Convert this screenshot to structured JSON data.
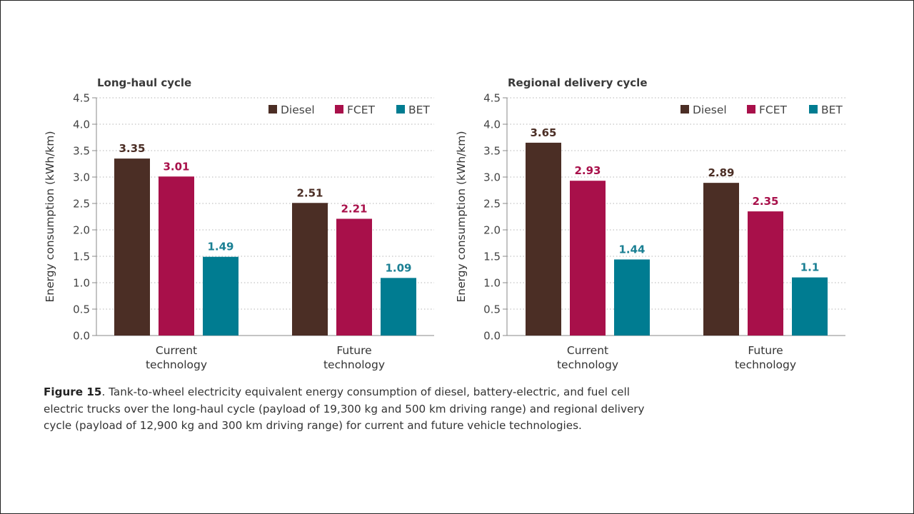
{
  "chart_data": [
    {
      "type": "bar",
      "title": "Long-haul cycle",
      "ylabel": "Energy consumption (kWh/km)",
      "xlabel": "",
      "ylim": [
        0,
        4.5
      ],
      "yticks": [
        "0.0",
        "0.5",
        "1.0",
        "1.5",
        "2.0",
        "2.5",
        "3.0",
        "3.5",
        "4.0",
        "4.5"
      ],
      "grid": true,
      "legend_position": "top-right",
      "categories": [
        {
          "lines": [
            "Current",
            "technology"
          ]
        },
        {
          "lines": [
            "Future",
            "technology"
          ]
        }
      ],
      "series": [
        {
          "name": "Diesel",
          "color": "#4b2e25",
          "values": [
            3.35,
            2.51
          ],
          "labels": [
            "3.35",
            "2.51"
          ],
          "label_color": "#4b2e25"
        },
        {
          "name": "FCET",
          "color": "#a8104a",
          "values": [
            3.01,
            2.21
          ],
          "labels": [
            "3.01",
            "2.21"
          ],
          "label_color": "#a8104a"
        },
        {
          "name": "BET",
          "color": "#007c91",
          "values": [
            1.49,
            1.09
          ],
          "labels": [
            "1.49",
            "1.09"
          ],
          "label_color": "#1a7f93"
        }
      ]
    },
    {
      "type": "bar",
      "title": "Regional delivery cycle",
      "ylabel": "Energy consumption (kWh/km)",
      "xlabel": "",
      "ylim": [
        0,
        4.5
      ],
      "yticks": [
        "0.0",
        "0.5",
        "1.0",
        "1.5",
        "2.0",
        "2.5",
        "3.0",
        "3.5",
        "4.0",
        "4.5"
      ],
      "grid": true,
      "legend_position": "top-right",
      "categories": [
        {
          "lines": [
            "Current",
            "technology"
          ]
        },
        {
          "lines": [
            "Future",
            "technology"
          ]
        }
      ],
      "series": [
        {
          "name": "Diesel",
          "color": "#4b2e25",
          "values": [
            3.65,
            2.89
          ],
          "labels": [
            "3.65",
            "2.89"
          ],
          "label_color": "#4b2e25"
        },
        {
          "name": "FCET",
          "color": "#a8104a",
          "values": [
            2.93,
            2.35
          ],
          "labels": [
            "2.93",
            "2.35"
          ],
          "label_color": "#a8104a"
        },
        {
          "name": "BET",
          "color": "#007c91",
          "values": [
            1.44,
            1.1
          ],
          "labels": [
            "1.44",
            "1.1"
          ],
          "label_color": "#1a7f93"
        }
      ]
    }
  ],
  "caption": {
    "label": "Figure 15",
    "text": ". Tank-to-wheel electricity equivalent energy consumption of diesel, battery-electric, and fuel cell electric trucks over the long-haul cycle (payload of 19,300 kg and 500 km driving range) and regional delivery cycle (payload of 12,900 kg and 300 km driving range) for current and future vehicle technologies."
  }
}
